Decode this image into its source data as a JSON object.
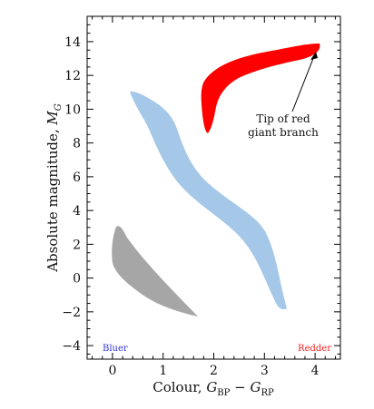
{
  "diagram": {
    "x_axis": {
      "label_main": "Colour, ",
      "label_G": "G",
      "label_sub_bp": "BP",
      "label_minus": " − ",
      "label_sub_rp": "RP",
      "range": [
        -0.5,
        4.5
      ],
      "ticks": [
        "0",
        "1",
        "2",
        "3",
        "4"
      ]
    },
    "y_axis": {
      "label_main": "Absolute magnitude, ",
      "label_M": "M",
      "label_sub": "G",
      "range": [
        15.5,
        -4.8
      ],
      "ticks": [
        "−4",
        "−2",
        "0",
        "2",
        "4",
        "6",
        "8",
        "10",
        "12",
        "14"
      ]
    },
    "annotation": {
      "line1": "Tip of red",
      "line2": "giant branch"
    },
    "corner_labels": {
      "left": "Bluer",
      "right": "Redder"
    },
    "colors": {
      "main_sequence": "#a6c8e8",
      "giant_branch": "#ff0000",
      "white_dwarfs": "#a6a6a6",
      "bluer": "#3333dd",
      "redder": "#ee2222",
      "axis": "#000000"
    }
  }
}
